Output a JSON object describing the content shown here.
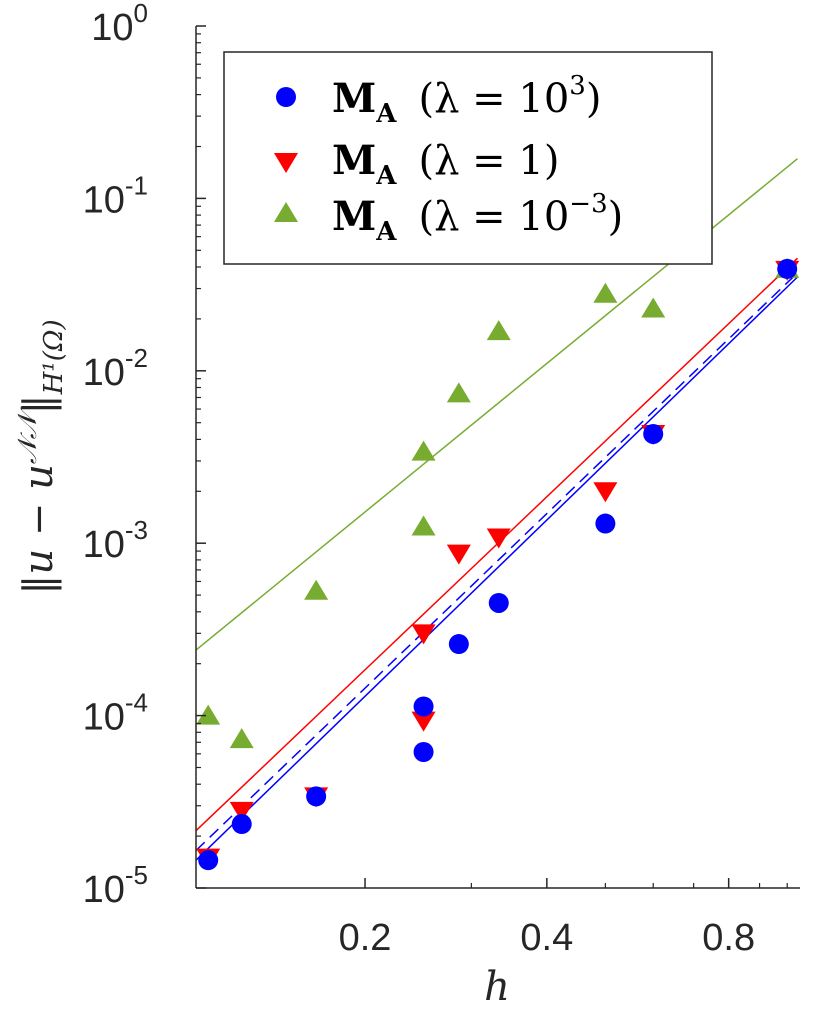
{
  "chart_data": {
    "type": "scatter",
    "xscale": "log",
    "yscale": "log",
    "xlim": [
      0.105,
      1.05
    ],
    "ylim": [
      1e-05,
      1
    ],
    "xlabel": "h",
    "ylabel": "||u − u^NN||_{H¹(Ω)}",
    "ylabel_parts": {
      "main": "‖u − u",
      "sup": "𝒩𝒩",
      "close": "‖",
      "sub": "H¹(Ω)"
    },
    "xticks": [
      {
        "value": 0.2,
        "label": "0.2"
      },
      {
        "value": 0.4,
        "label": "0.4"
      },
      {
        "value": 0.8,
        "label": "0.8"
      }
    ],
    "xminor": [
      0.3,
      0.5,
      0.6,
      0.7,
      0.9,
      1.0
    ],
    "yticks": [
      {
        "value": 1e-05,
        "base": "10",
        "exp": "-5"
      },
      {
        "value": 0.0001,
        "base": "10",
        "exp": "-4"
      },
      {
        "value": 0.001,
        "base": "10",
        "exp": "-3"
      },
      {
        "value": 0.01,
        "base": "10",
        "exp": "-2"
      },
      {
        "value": 0.1,
        "base": "10",
        "exp": "-1"
      },
      {
        "value": 1,
        "base": "10",
        "exp": "0"
      }
    ],
    "legend_position": "top-right",
    "series": [
      {
        "name": "M_A (λ = 10^3)",
        "legend": {
          "bold": "M",
          "sub": "A",
          "pre": "(λ = 10",
          "sup": "3",
          "post": ")"
        },
        "marker": "circle",
        "color": "#0000ff",
        "points": [
          {
            "x": 0.11,
            "y": 1.45e-05
          },
          {
            "x": 0.125,
            "y": 2.35e-05
          },
          {
            "x": 0.166,
            "y": 3.4e-05
          },
          {
            "x": 0.25,
            "y": 0.000113
          },
          {
            "x": 0.25,
            "y": 6.15e-05
          },
          {
            "x": 0.286,
            "y": 0.00026
          },
          {
            "x": 0.333,
            "y": 0.00045
          },
          {
            "x": 0.5,
            "y": 0.0013
          },
          {
            "x": 0.6,
            "y": 0.0043
          },
          {
            "x": 1.0,
            "y": 0.039
          }
        ],
        "fit": {
          "x": [
            0.105,
            1.04
          ],
          "y": [
            1.45e-05,
            0.035
          ],
          "style": "solid"
        },
        "fit2": {
          "x": [
            0.105,
            1.04
          ],
          "y": [
            1.65e-05,
            0.037
          ],
          "style": "dashed"
        }
      },
      {
        "name": "M_A (λ = 1)",
        "legend": {
          "bold": "M",
          "sub": "A",
          "pre": "(λ = 1)",
          "sup": "",
          "post": ""
        },
        "marker": "triangle-down",
        "color": "#ff0000",
        "points": [
          {
            "x": 0.11,
            "y": 1.5e-05
          },
          {
            "x": 0.125,
            "y": 2.8e-05
          },
          {
            "x": 0.166,
            "y": 3.4e-05
          },
          {
            "x": 0.25,
            "y": 0.0003
          },
          {
            "x": 0.25,
            "y": 9.35e-05
          },
          {
            "x": 0.286,
            "y": 0.00087
          },
          {
            "x": 0.333,
            "y": 0.00108
          },
          {
            "x": 0.5,
            "y": 0.002
          },
          {
            "x": 0.6,
            "y": 0.0043
          },
          {
            "x": 1.0,
            "y": 0.0385
          }
        ],
        "fit": {
          "x": [
            0.105,
            1.04
          ],
          "y": [
            2.15e-05,
            0.045
          ],
          "style": "solid"
        }
      },
      {
        "name": "M_A (λ = 10^-3)",
        "legend": {
          "bold": "M",
          "sub": "A",
          "pre": "(λ = 10",
          "sup": "−3",
          "post": ")"
        },
        "marker": "triangle-up",
        "color": "#77ac30",
        "points": [
          {
            "x": 0.11,
            "y": 0.0001
          },
          {
            "x": 0.125,
            "y": 7.3e-05
          },
          {
            "x": 0.166,
            "y": 0.00053
          },
          {
            "x": 0.25,
            "y": 0.0034
          },
          {
            "x": 0.25,
            "y": 0.00125
          },
          {
            "x": 0.286,
            "y": 0.0074
          },
          {
            "x": 0.333,
            "y": 0.017
          },
          {
            "x": 0.5,
            "y": 0.028
          },
          {
            "x": 0.6,
            "y": 0.023
          },
          {
            "x": 1.0,
            "y": 0.039
          }
        ],
        "fit": {
          "x": [
            0.105,
            1.04
          ],
          "y": [
            0.00024,
            0.17
          ],
          "style": "solid"
        }
      }
    ]
  }
}
